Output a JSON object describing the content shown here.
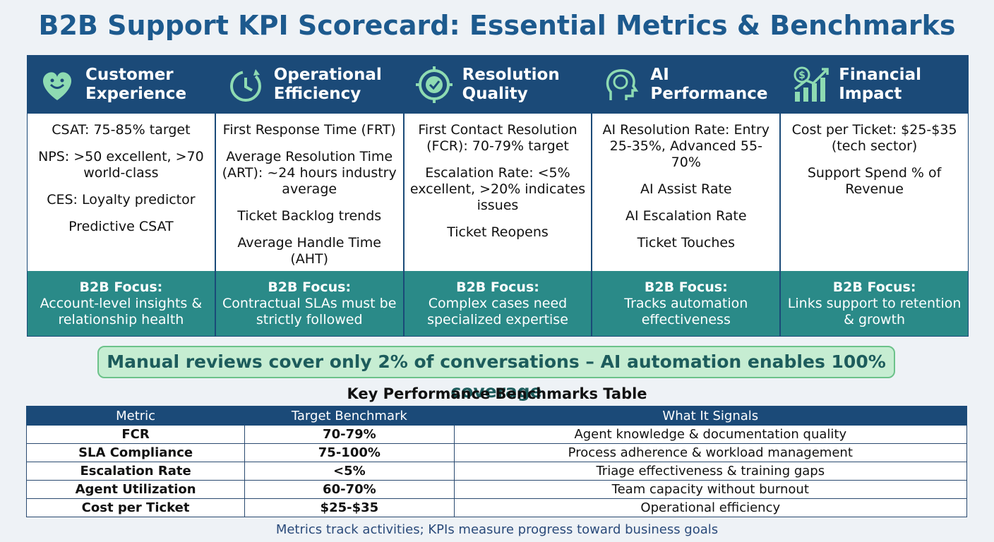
{
  "title": "B2B Support KPI Scorecard: Essential Metrics & Benchmarks",
  "columns": [
    {
      "heading": "Customer Experience",
      "items": [
        "CSAT: 75-85% target",
        "NPS: >50 excellent, >70 world-class",
        "CES: Loyalty predictor",
        "Predictive CSAT"
      ],
      "focus_label": "B2B Focus:",
      "focus_text": "Account-level insights & relationship health"
    },
    {
      "heading": "Operational Efficiency",
      "items": [
        "First Response Time (FRT)",
        "Average Resolution Time (ART): ~24 hours industry average",
        "Ticket Backlog trends",
        "Average Handle Time (AHT)"
      ],
      "focus_label": "B2B Focus:",
      "focus_text": "Contractual SLAs must be strictly followed"
    },
    {
      "heading": "Resolution Quality",
      "items": [
        "First Contact Resolution (FCR): 70-79% target",
        "Escalation Rate: <5% excellent, >20% indicates issues",
        "Ticket Reopens"
      ],
      "focus_label": "B2B Focus:",
      "focus_text": "Complex cases need specialized expertise"
    },
    {
      "heading": "AI Performance",
      "items": [
        "AI Resolution Rate: Entry 25-35%, Advanced 55-70%",
        "AI Assist Rate",
        "AI Escalation Rate",
        "Ticket Touches"
      ],
      "focus_label": "B2B Focus:",
      "focus_text": "Tracks automation effectiveness"
    },
    {
      "heading": "Financial Impact",
      "items": [
        "Cost per Ticket: $25-$35 (tech sector)",
        "Support Spend % of Revenue"
      ],
      "focus_label": "B2B Focus:",
      "focus_text": "Links support to retention & growth"
    }
  ],
  "banner": "Manual reviews cover only 2% of conversations – AI automation enables 100% coverage",
  "table": {
    "title": "Key Performance Benchmarks Table",
    "headers": [
      "Metric",
      "Target Benchmark",
      "What It Signals"
    ],
    "rows": [
      [
        "FCR",
        "70-79%",
        "Agent knowledge & documentation quality"
      ],
      [
        "SLA Compliance",
        "75-100%",
        "Process adherence & workload management"
      ],
      [
        "Escalation Rate",
        "<5%",
        "Triage effectiveness & training gaps"
      ],
      [
        "Agent Utilization",
        "60-70%",
        "Team capacity without burnout"
      ],
      [
        "Cost per Ticket",
        "$25-$35",
        "Operational efficiency"
      ]
    ]
  },
  "footer": "Metrics track activities; KPIs measure progress toward business goals"
}
